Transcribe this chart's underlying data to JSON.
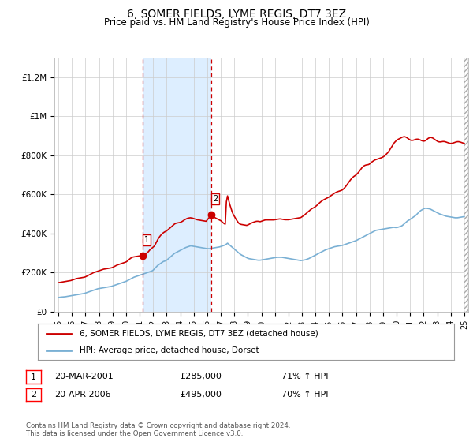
{
  "title": "6, SOMER FIELDS, LYME REGIS, DT7 3EZ",
  "subtitle": "Price paid vs. HM Land Registry's House Price Index (HPI)",
  "title_fontsize": 11,
  "subtitle_fontsize": 9,
  "background_color": "#ffffff",
  "plot_bg_color": "#ffffff",
  "grid_color": "#cccccc",
  "ylim": [
    0,
    1300000
  ],
  "yticks": [
    0,
    200000,
    400000,
    600000,
    800000,
    1000000,
    1200000
  ],
  "ytick_labels": [
    "£0",
    "£200K",
    "£400K",
    "£600K",
    "£800K",
    "£1M",
    "£1.2M"
  ],
  "sale1_date_x": 2001.22,
  "sale1_price": 285000,
  "sale2_date_x": 2006.31,
  "sale2_price": 495000,
  "sale_color": "#cc0000",
  "hpi_color": "#7ab0d4",
  "shade_color": "#ddeeff",
  "legend_label_property": "6, SOMER FIELDS, LYME REGIS, DT7 3EZ (detached house)",
  "legend_label_hpi": "HPI: Average price, detached house, Dorset",
  "annotation1_num": "1",
  "annotation1_date": "20-MAR-2001",
  "annotation1_price": "£285,000",
  "annotation1_hpi": "71% ↑ HPI",
  "annotation2_num": "2",
  "annotation2_date": "20-APR-2006",
  "annotation2_price": "£495,000",
  "annotation2_hpi": "70% ↑ HPI",
  "footer": "Contains HM Land Registry data © Crown copyright and database right 2024.\nThis data is licensed under the Open Government Licence v3.0.",
  "hpi_x": [
    1995.0,
    1995.083,
    1995.167,
    1995.25,
    1995.333,
    1995.417,
    1995.5,
    1995.583,
    1995.667,
    1995.75,
    1995.833,
    1995.917,
    1996.0,
    1996.083,
    1996.167,
    1996.25,
    1996.333,
    1996.417,
    1996.5,
    1996.583,
    1996.667,
    1996.75,
    1996.833,
    1996.917,
    1997.0,
    1997.083,
    1997.167,
    1997.25,
    1997.333,
    1997.417,
    1997.5,
    1997.583,
    1997.667,
    1997.75,
    1997.833,
    1997.917,
    1998.0,
    1998.083,
    1998.167,
    1998.25,
    1998.333,
    1998.417,
    1998.5,
    1998.583,
    1998.667,
    1998.75,
    1998.833,
    1998.917,
    1999.0,
    1999.083,
    1999.167,
    1999.25,
    1999.333,
    1999.417,
    1999.5,
    1999.583,
    1999.667,
    1999.75,
    1999.833,
    1999.917,
    2000.0,
    2000.083,
    2000.167,
    2000.25,
    2000.333,
    2000.417,
    2000.5,
    2000.583,
    2000.667,
    2000.75,
    2000.833,
    2000.917,
    2001.0,
    2001.083,
    2001.167,
    2001.25,
    2001.333,
    2001.417,
    2001.5,
    2001.583,
    2001.667,
    2001.75,
    2001.833,
    2001.917,
    2002.0,
    2002.083,
    2002.167,
    2002.25,
    2002.333,
    2002.417,
    2002.5,
    2002.583,
    2002.667,
    2002.75,
    2002.833,
    2002.917,
    2003.0,
    2003.083,
    2003.167,
    2003.25,
    2003.333,
    2003.417,
    2003.5,
    2003.583,
    2003.667,
    2003.75,
    2003.833,
    2003.917,
    2004.0,
    2004.083,
    2004.167,
    2004.25,
    2004.333,
    2004.417,
    2004.5,
    2004.583,
    2004.667,
    2004.75,
    2004.833,
    2004.917,
    2005.0,
    2005.083,
    2005.167,
    2005.25,
    2005.333,
    2005.417,
    2005.5,
    2005.583,
    2005.667,
    2005.75,
    2005.833,
    2005.917,
    2006.0,
    2006.083,
    2006.167,
    2006.25,
    2006.333,
    2006.417,
    2006.5,
    2006.583,
    2006.667,
    2006.75,
    2006.833,
    2006.917,
    2007.0,
    2007.083,
    2007.167,
    2007.25,
    2007.333,
    2007.417,
    2007.5,
    2007.583,
    2007.667,
    2007.75,
    2007.833,
    2007.917,
    2008.0,
    2008.083,
    2008.167,
    2008.25,
    2008.333,
    2008.417,
    2008.5,
    2008.583,
    2008.667,
    2008.75,
    2008.833,
    2008.917,
    2009.0,
    2009.083,
    2009.167,
    2009.25,
    2009.333,
    2009.417,
    2009.5,
    2009.583,
    2009.667,
    2009.75,
    2009.833,
    2009.917,
    2010.0,
    2010.083,
    2010.167,
    2010.25,
    2010.333,
    2010.417,
    2010.5,
    2010.583,
    2010.667,
    2010.75,
    2010.833,
    2010.917,
    2011.0,
    2011.083,
    2011.167,
    2011.25,
    2011.333,
    2011.417,
    2011.5,
    2011.583,
    2011.667,
    2011.75,
    2011.833,
    2011.917,
    2012.0,
    2012.083,
    2012.167,
    2012.25,
    2012.333,
    2012.417,
    2012.5,
    2012.583,
    2012.667,
    2012.75,
    2012.833,
    2012.917,
    2013.0,
    2013.083,
    2013.167,
    2013.25,
    2013.333,
    2013.417,
    2013.5,
    2013.583,
    2013.667,
    2013.75,
    2013.833,
    2013.917,
    2014.0,
    2014.083,
    2014.167,
    2014.25,
    2014.333,
    2014.417,
    2014.5,
    2014.583,
    2014.667,
    2014.75,
    2014.833,
    2014.917,
    2015.0,
    2015.083,
    2015.167,
    2015.25,
    2015.333,
    2015.417,
    2015.5,
    2015.583,
    2015.667,
    2015.75,
    2015.833,
    2015.917,
    2016.0,
    2016.083,
    2016.167,
    2016.25,
    2016.333,
    2016.417,
    2016.5,
    2016.583,
    2016.667,
    2016.75,
    2016.833,
    2016.917,
    2017.0,
    2017.083,
    2017.167,
    2017.25,
    2017.333,
    2017.417,
    2017.5,
    2017.583,
    2017.667,
    2017.75,
    2017.833,
    2017.917,
    2018.0,
    2018.083,
    2018.167,
    2018.25,
    2018.333,
    2018.417,
    2018.5,
    2018.583,
    2018.667,
    2018.75,
    2018.833,
    2018.917,
    2019.0,
    2019.083,
    2019.167,
    2019.25,
    2019.333,
    2019.417,
    2019.5,
    2019.583,
    2019.667,
    2019.75,
    2019.833,
    2019.917,
    2020.0,
    2020.083,
    2020.167,
    2020.25,
    2020.333,
    2020.417,
    2020.5,
    2020.583,
    2020.667,
    2020.75,
    2020.833,
    2020.917,
    2021.0,
    2021.083,
    2021.167,
    2021.25,
    2021.333,
    2021.417,
    2021.5,
    2021.583,
    2021.667,
    2021.75,
    2021.833,
    2021.917,
    2022.0,
    2022.083,
    2022.167,
    2022.25,
    2022.333,
    2022.417,
    2022.5,
    2022.583,
    2022.667,
    2022.75,
    2022.833,
    2022.917,
    2023.0,
    2023.083,
    2023.167,
    2023.25,
    2023.333,
    2023.417,
    2023.5,
    2023.583,
    2023.667,
    2023.75,
    2023.833,
    2023.917,
    2024.0,
    2024.083,
    2024.167,
    2024.25,
    2024.333,
    2024.417,
    2024.5,
    2024.583,
    2024.667,
    2024.75,
    2024.833,
    2024.917,
    2025.0
  ],
  "hpi_y": [
    72000,
    73000,
    74000,
    74500,
    75000,
    75500,
    76000,
    77000,
    78000,
    79000,
    80000,
    81000,
    82000,
    83000,
    84000,
    85000,
    86000,
    87000,
    88000,
    89000,
    90000,
    91000,
    92000,
    93000,
    95000,
    97000,
    99000,
    101000,
    103000,
    105000,
    107000,
    109000,
    111000,
    113000,
    115000,
    117000,
    118000,
    119000,
    120000,
    121000,
    122000,
    123000,
    124000,
    125000,
    126000,
    127000,
    128000,
    129000,
    131000,
    133000,
    135000,
    137000,
    139000,
    141000,
    143000,
    145000,
    147000,
    149000,
    151000,
    153000,
    155000,
    158000,
    161000,
    164000,
    167000,
    170000,
    173000,
    176000,
    178000,
    180000,
    182000,
    184000,
    186000,
    188000,
    190000,
    192000,
    194000,
    196000,
    198000,
    200000,
    202000,
    204000,
    206000,
    208000,
    212000,
    218000,
    224000,
    230000,
    236000,
    240000,
    244000,
    248000,
    252000,
    256000,
    258000,
    260000,
    263000,
    268000,
    273000,
    278000,
    283000,
    288000,
    293000,
    298000,
    301000,
    304000,
    307000,
    310000,
    313000,
    316000,
    319000,
    322000,
    325000,
    328000,
    330000,
    332000,
    334000,
    336000,
    336000,
    335000,
    334000,
    333000,
    332000,
    331000,
    330000,
    329000,
    328000,
    327000,
    326000,
    325000,
    324000,
    323000,
    322000,
    322000,
    322000,
    323000,
    324000,
    325000,
    326000,
    327000,
    328000,
    329000,
    330000,
    331000,
    333000,
    335000,
    337000,
    339000,
    342000,
    345000,
    350000,
    345000,
    340000,
    335000,
    330000,
    325000,
    320000,
    315000,
    310000,
    305000,
    300000,
    295000,
    291000,
    288000,
    285000,
    282000,
    279000,
    276000,
    273000,
    271000,
    270000,
    269000,
    268000,
    267000,
    266000,
    265000,
    264000,
    263000,
    263000,
    263000,
    264000,
    265000,
    266000,
    267000,
    268000,
    269000,
    270000,
    271000,
    272000,
    273000,
    274000,
    275000,
    276000,
    277000,
    278000,
    278000,
    278000,
    278000,
    278000,
    277000,
    276000,
    275000,
    274000,
    273000,
    272000,
    271000,
    270000,
    269000,
    268000,
    267000,
    266000,
    265000,
    264000,
    263000,
    262000,
    261000,
    262000,
    263000,
    264000,
    265000,
    267000,
    269000,
    271000,
    274000,
    277000,
    280000,
    283000,
    286000,
    289000,
    292000,
    295000,
    298000,
    301000,
    304000,
    307000,
    310000,
    313000,
    316000,
    318000,
    320000,
    322000,
    324000,
    326000,
    328000,
    330000,
    332000,
    333000,
    334000,
    335000,
    336000,
    337000,
    338000,
    339000,
    341000,
    343000,
    345000,
    347000,
    349000,
    351000,
    353000,
    355000,
    357000,
    359000,
    361000,
    363000,
    366000,
    369000,
    372000,
    375000,
    378000,
    381000,
    384000,
    387000,
    390000,
    393000,
    396000,
    399000,
    402000,
    405000,
    408000,
    411000,
    414000,
    416000,
    417000,
    418000,
    419000,
    420000,
    421000,
    422000,
    423000,
    424000,
    425000,
    426000,
    427000,
    428000,
    429000,
    430000,
    431000,
    431000,
    430000,
    430000,
    431000,
    433000,
    435000,
    437000,
    440000,
    445000,
    450000,
    455000,
    460000,
    465000,
    468000,
    472000,
    476000,
    480000,
    484000,
    488000,
    492000,
    498000,
    504000,
    510000,
    515000,
    519000,
    522000,
    526000,
    528000,
    529000,
    528000,
    527000,
    526000,
    524000,
    521000,
    518000,
    515000,
    512000,
    509000,
    506000,
    503000,
    500000,
    498000,
    496000,
    494000,
    492000,
    490000,
    488000,
    487000,
    486000,
    485000,
    484000,
    483000,
    482000,
    481000,
    480000,
    480000,
    480000,
    481000,
    482000,
    483000,
    484000,
    485000,
    486000
  ],
  "prop_x": [
    1995.0,
    1995.083,
    1995.167,
    1995.25,
    1995.333,
    1995.417,
    1995.5,
    1995.583,
    1995.667,
    1995.75,
    1995.833,
    1995.917,
    1996.0,
    1996.083,
    1996.167,
    1996.25,
    1996.333,
    1996.417,
    1996.5,
    1996.583,
    1996.667,
    1996.75,
    1996.833,
    1996.917,
    1997.0,
    1997.083,
    1997.167,
    1997.25,
    1997.333,
    1997.417,
    1997.5,
    1997.583,
    1997.667,
    1997.75,
    1997.833,
    1997.917,
    1998.0,
    1998.083,
    1998.167,
    1998.25,
    1998.333,
    1998.417,
    1998.5,
    1998.583,
    1998.667,
    1998.75,
    1998.833,
    1998.917,
    1999.0,
    1999.083,
    1999.167,
    1999.25,
    1999.333,
    1999.417,
    1999.5,
    1999.583,
    1999.667,
    1999.75,
    1999.833,
    1999.917,
    2000.0,
    2000.083,
    2000.167,
    2000.25,
    2000.333,
    2000.417,
    2000.5,
    2000.583,
    2000.667,
    2000.75,
    2000.833,
    2000.917,
    2001.22,
    2001.25,
    2001.333,
    2001.417,
    2001.5,
    2001.583,
    2001.667,
    2001.75,
    2001.833,
    2001.917,
    2002.0,
    2002.083,
    2002.167,
    2002.25,
    2002.333,
    2002.417,
    2002.5,
    2002.583,
    2002.667,
    2002.75,
    2002.833,
    2002.917,
    2003.0,
    2003.083,
    2003.167,
    2003.25,
    2003.333,
    2003.417,
    2003.5,
    2003.583,
    2003.667,
    2003.75,
    2003.833,
    2003.917,
    2004.0,
    2004.083,
    2004.167,
    2004.25,
    2004.333,
    2004.417,
    2004.5,
    2004.583,
    2004.667,
    2004.75,
    2004.833,
    2004.917,
    2005.0,
    2005.083,
    2005.167,
    2005.25,
    2005.333,
    2005.417,
    2005.5,
    2005.583,
    2005.667,
    2005.75,
    2005.833,
    2005.917,
    2006.31,
    2006.333,
    2006.417,
    2006.5,
    2006.583,
    2006.667,
    2006.75,
    2006.833,
    2006.917,
    2007.0,
    2007.083,
    2007.167,
    2007.25,
    2007.333,
    2007.417,
    2007.5,
    2007.583,
    2007.667,
    2007.75,
    2007.833,
    2007.917,
    2008.0,
    2008.083,
    2008.167,
    2008.25,
    2008.333,
    2008.417,
    2008.5,
    2008.583,
    2008.667,
    2008.75,
    2008.833,
    2008.917,
    2009.0,
    2009.083,
    2009.167,
    2009.25,
    2009.333,
    2009.417,
    2009.5,
    2009.583,
    2009.667,
    2009.75,
    2009.833,
    2009.917,
    2010.0,
    2010.083,
    2010.167,
    2010.25,
    2010.333,
    2010.417,
    2010.5,
    2010.583,
    2010.667,
    2010.75,
    2010.833,
    2010.917,
    2011.0,
    2011.083,
    2011.167,
    2011.25,
    2011.333,
    2011.417,
    2011.5,
    2011.583,
    2011.667,
    2011.75,
    2011.833,
    2011.917,
    2012.0,
    2012.083,
    2012.167,
    2012.25,
    2012.333,
    2012.417,
    2012.5,
    2012.583,
    2012.667,
    2012.75,
    2012.833,
    2012.917,
    2013.0,
    2013.083,
    2013.167,
    2013.25,
    2013.333,
    2013.417,
    2013.5,
    2013.583,
    2013.667,
    2013.75,
    2013.833,
    2013.917,
    2014.0,
    2014.083,
    2014.167,
    2014.25,
    2014.333,
    2014.417,
    2014.5,
    2014.583,
    2014.667,
    2014.75,
    2014.833,
    2014.917,
    2015.0,
    2015.083,
    2015.167,
    2015.25,
    2015.333,
    2015.417,
    2015.5,
    2015.583,
    2015.667,
    2015.75,
    2015.833,
    2015.917,
    2016.0,
    2016.083,
    2016.167,
    2016.25,
    2016.333,
    2016.417,
    2016.5,
    2016.583,
    2016.667,
    2016.75,
    2016.833,
    2016.917,
    2017.0,
    2017.083,
    2017.167,
    2017.25,
    2017.333,
    2017.417,
    2017.5,
    2017.583,
    2017.667,
    2017.75,
    2017.833,
    2017.917,
    2018.0,
    2018.083,
    2018.167,
    2018.25,
    2018.333,
    2018.417,
    2018.5,
    2018.583,
    2018.667,
    2018.75,
    2018.833,
    2018.917,
    2019.0,
    2019.083,
    2019.167,
    2019.25,
    2019.333,
    2019.417,
    2019.5,
    2019.583,
    2019.667,
    2019.75,
    2019.833,
    2019.917,
    2020.0,
    2020.083,
    2020.167,
    2020.25,
    2020.333,
    2020.417,
    2020.5,
    2020.583,
    2020.667,
    2020.75,
    2020.833,
    2020.917,
    2021.0,
    2021.083,
    2021.167,
    2021.25,
    2021.333,
    2021.417,
    2021.5,
    2021.583,
    2021.667,
    2021.75,
    2021.833,
    2021.917,
    2022.0,
    2022.083,
    2022.167,
    2022.25,
    2022.333,
    2022.417,
    2022.5,
    2022.583,
    2022.667,
    2022.75,
    2022.833,
    2022.917,
    2023.0,
    2023.083,
    2023.167,
    2023.25,
    2023.333,
    2023.417,
    2023.5,
    2023.583,
    2023.667,
    2023.75,
    2023.833,
    2023.917,
    2024.0,
    2024.083,
    2024.167,
    2024.25,
    2024.333,
    2024.417,
    2024.5,
    2024.583,
    2024.667,
    2024.75,
    2024.833,
    2024.917,
    2025.0
  ],
  "prop_y": [
    148000,
    149000,
    150000,
    151000,
    152000,
    153000,
    154000,
    155000,
    156000,
    157000,
    158000,
    159000,
    161000,
    163000,
    165000,
    167000,
    169000,
    170000,
    171000,
    172000,
    173000,
    174000,
    175000,
    176000,
    178000,
    181000,
    184000,
    187000,
    190000,
    193000,
    196000,
    199000,
    201000,
    203000,
    205000,
    207000,
    209000,
    211000,
    213000,
    215000,
    217000,
    218000,
    219000,
    220000,
    221000,
    222000,
    223000,
    224000,
    226000,
    229000,
    232000,
    235000,
    238000,
    240000,
    242000,
    244000,
    246000,
    248000,
    250000,
    252000,
    254000,
    258000,
    263000,
    268000,
    273000,
    276000,
    279000,
    280000,
    281000,
    282000,
    283000,
    284000,
    285000,
    287000,
    291000,
    295000,
    298000,
    302000,
    308000,
    315000,
    320000,
    325000,
    330000,
    335000,
    345000,
    356000,
    367000,
    377000,
    385000,
    392000,
    398000,
    403000,
    407000,
    410000,
    413000,
    418000,
    423000,
    428000,
    433000,
    438000,
    443000,
    448000,
    451000,
    453000,
    454000,
    455000,
    456000,
    459000,
    462000,
    466000,
    470000,
    473000,
    476000,
    478000,
    479000,
    480000,
    479000,
    478000,
    476000,
    474000,
    472000,
    470000,
    469000,
    468000,
    467000,
    466000,
    465000,
    464000,
    463000,
    462000,
    495000,
    492000,
    488000,
    484000,
    480000,
    477000,
    474000,
    471000,
    468000,
    465000,
    460000,
    455000,
    450000,
    447000,
    562000,
    592000,
    570000,
    548000,
    530000,
    512000,
    498000,
    488000,
    478000,
    468000,
    460000,
    452000,
    448000,
    446000,
    445000,
    444000,
    443000,
    442000,
    441000,
    443000,
    446000,
    449000,
    452000,
    455000,
    457000,
    459000,
    461000,
    462000,
    462000,
    461000,
    460000,
    462000,
    464000,
    466000,
    468000,
    469000,
    469000,
    469000,
    469000,
    469000,
    469000,
    469000,
    469000,
    470000,
    471000,
    472000,
    473000,
    474000,
    474000,
    473000,
    472000,
    471000,
    470000,
    470000,
    470000,
    470000,
    471000,
    472000,
    473000,
    474000,
    475000,
    476000,
    477000,
    478000,
    479000,
    480000,
    481000,
    485000,
    489000,
    493000,
    498000,
    503000,
    508000,
    513000,
    518000,
    523000,
    527000,
    530000,
    533000,
    537000,
    542000,
    547000,
    553000,
    558000,
    563000,
    567000,
    571000,
    574000,
    577000,
    580000,
    583000,
    586000,
    590000,
    594000,
    598000,
    602000,
    606000,
    609000,
    612000,
    614000,
    616000,
    618000,
    620000,
    623000,
    628000,
    634000,
    641000,
    649000,
    657000,
    665000,
    673000,
    680000,
    686000,
    691000,
    695000,
    699000,
    705000,
    711000,
    718000,
    726000,
    734000,
    740000,
    745000,
    748000,
    750000,
    751000,
    752000,
    755000,
    760000,
    765000,
    769000,
    773000,
    776000,
    778000,
    780000,
    782000,
    784000,
    786000,
    788000,
    791000,
    795000,
    800000,
    806000,
    812000,
    819000,
    828000,
    837000,
    846000,
    855000,
    864000,
    870000,
    876000,
    880000,
    883000,
    886000,
    889000,
    892000,
    894000,
    895000,
    893000,
    890000,
    886000,
    882000,
    878000,
    876000,
    876000,
    877000,
    879000,
    881000,
    882000,
    882000,
    880000,
    878000,
    875000,
    873000,
    872000,
    873000,
    876000,
    881000,
    886000,
    889000,
    891000,
    890000,
    888000,
    884000,
    880000,
    876000,
    872000,
    869000,
    868000,
    868000,
    869000,
    870000,
    870000,
    869000,
    867000,
    865000,
    863000,
    861000,
    860000,
    861000,
    862000,
    864000,
    866000,
    868000,
    869000,
    869000,
    868000,
    866000,
    864000,
    862000,
    860000
  ],
  "xtick_years": [
    1995,
    1996,
    1997,
    1998,
    1999,
    2000,
    2001,
    2002,
    2003,
    2004,
    2005,
    2006,
    2007,
    2008,
    2009,
    2010,
    2011,
    2012,
    2013,
    2014,
    2015,
    2016,
    2017,
    2018,
    2019,
    2020,
    2021,
    2022,
    2023,
    2024,
    2025
  ]
}
